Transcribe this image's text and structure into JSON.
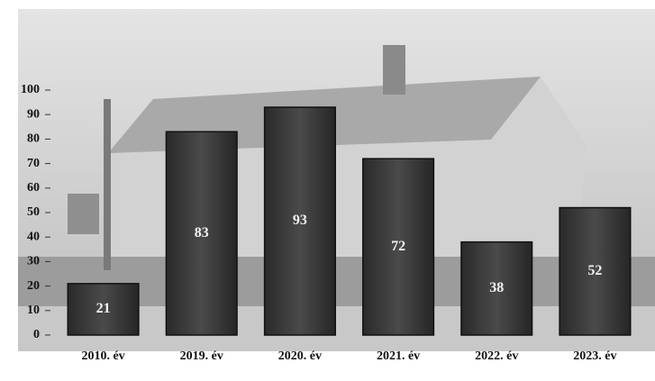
{
  "chart_data": {
    "type": "bar",
    "categories": [
      "2010. év",
      "2019. év",
      "2020. év",
      "2021. év",
      "2022. év",
      "2023. év"
    ],
    "values": [
      21,
      83,
      93,
      72,
      38,
      52
    ],
    "color": "#3b3b3b",
    "ylim": [
      0,
      100
    ],
    "yticks": [
      0,
      10,
      20,
      30,
      40,
      50,
      60,
      70,
      80,
      90,
      100
    ],
    "grid": false
  }
}
